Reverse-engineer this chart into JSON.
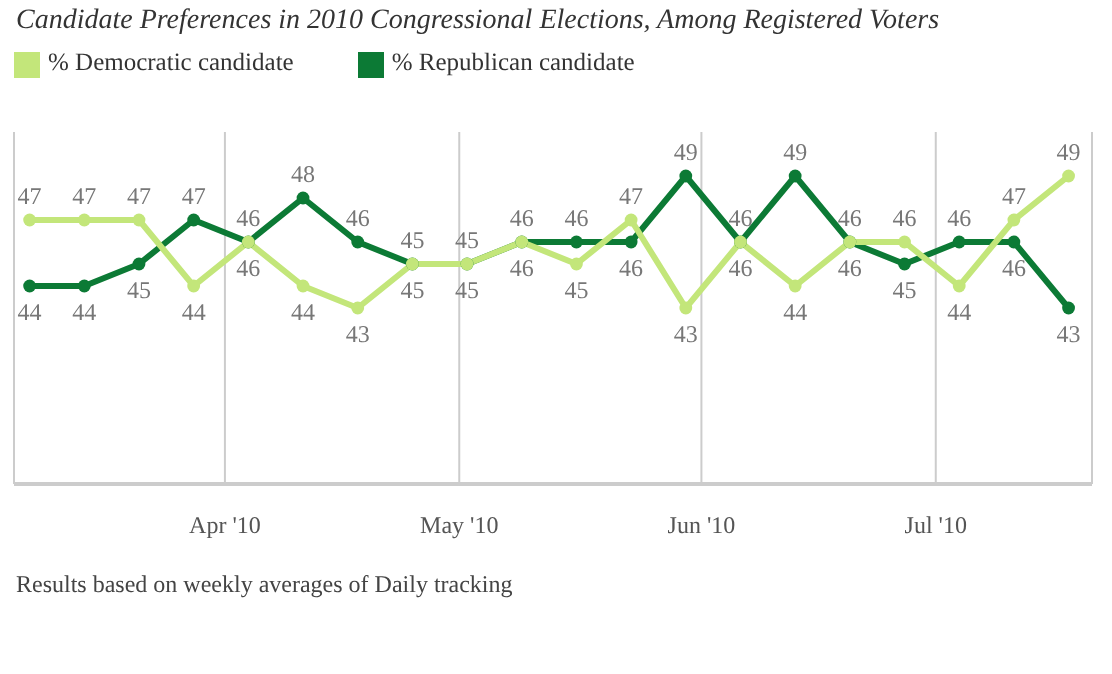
{
  "chart_data": {
    "type": "line",
    "title": "Candidate Preferences in 2010 Congressional Elections, Among Registered Voters",
    "x": [
      "2010-03-07",
      "2010-03-14",
      "2010-03-21",
      "2010-03-28",
      "2010-04-04",
      "2010-04-11",
      "2010-04-18",
      "2010-04-25",
      "2010-05-02",
      "2010-05-09",
      "2010-05-16",
      "2010-05-23",
      "2010-05-30",
      "2010-06-06",
      "2010-06-13",
      "2010-06-20",
      "2010-06-27",
      "2010-07-04",
      "2010-07-11",
      "2010-07-18"
    ],
    "series": [
      {
        "name": "% Republican candidate",
        "color": "#0c7a35",
        "values": [
          44,
          44,
          45,
          47,
          46,
          48,
          46,
          45,
          45,
          46,
          46,
          46,
          49,
          46,
          49,
          46,
          45,
          46,
          46,
          43
        ]
      },
      {
        "name": "% Democratic candidate",
        "color": "#c3e67a",
        "values": [
          47,
          47,
          47,
          44,
          46,
          44,
          43,
          45,
          45,
          46,
          45,
          47,
          43,
          46,
          44,
          46,
          46,
          44,
          47,
          49
        ]
      }
    ],
    "xlim": [
      "2010-03-05",
      "2010-07-21"
    ],
    "xticks": [
      {
        "value": "2010-04-01",
        "label": "Apr '10"
      },
      {
        "value": "2010-05-01",
        "label": "May '10"
      },
      {
        "value": "2010-06-01",
        "label": "Jun '10"
      },
      {
        "value": "2010-07-01",
        "label": "Jul '10"
      }
    ],
    "ylim": [
      35,
      51
    ],
    "tick_labels": "x",
    "grid": "x",
    "legend": "top left",
    "marker": "circle",
    "line_style": "solid",
    "data_labels": true,
    "annotations": [
      "Results based on weekly averages of Daily tracking"
    ]
  }
}
